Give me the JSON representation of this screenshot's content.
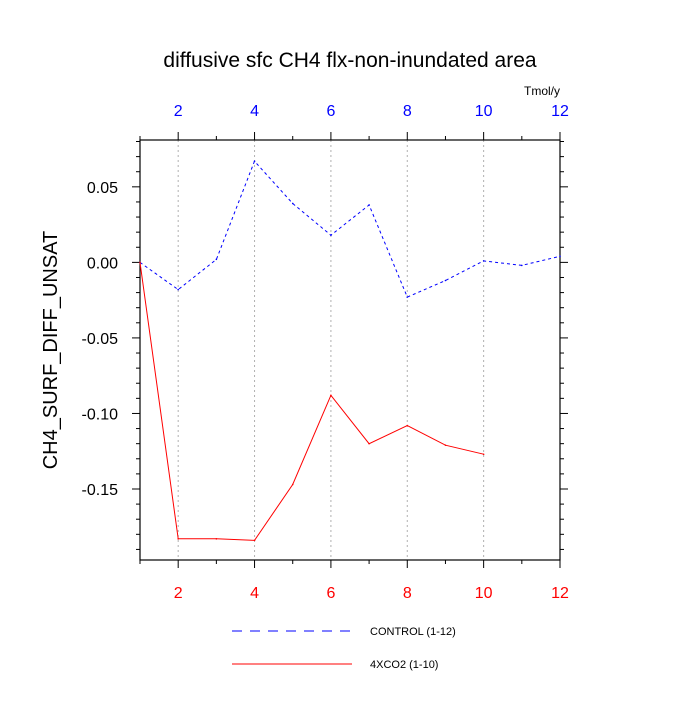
{
  "chart_data": {
    "type": "line",
    "title": "diffusive sfc CH4 flx-non-inundated area",
    "units_label": "Tmol/y",
    "xlabel": "",
    "ylabel": "CH4_SURF_DIFF_UNSAT",
    "xlim": [
      1,
      12
    ],
    "ylim": [
      -0.197,
      0.081
    ],
    "x_ticks": [
      2,
      4,
      6,
      8,
      10,
      12
    ],
    "x_tick_labels": [
      "2",
      "4",
      "6",
      "8",
      "10",
      "12"
    ],
    "y_ticks": [
      0.05,
      0.0,
      -0.05,
      -0.1,
      -0.15
    ],
    "y_tick_labels": [
      "0.05",
      "0.00",
      "-0.05",
      "-0.10",
      "-0.15"
    ],
    "grid": "vertical dotted at major x ticks",
    "top_axis_color": "#0000ff",
    "bottom_axis_color": "#ff0000",
    "series": [
      {
        "name": "CONTROL (1-12)",
        "color": "#0000ff",
        "dash": "dashed",
        "x": [
          1,
          2,
          3,
          4,
          5,
          6,
          7,
          8,
          9,
          10,
          11,
          12
        ],
        "values": [
          0.0,
          -0.018,
          0.002,
          0.067,
          0.039,
          0.018,
          0.038,
          -0.023,
          -0.012,
          0.001,
          -0.002,
          0.004
        ]
      },
      {
        "name": "4XCO2 (1-10)",
        "color": "#ff0000",
        "dash": "solid",
        "x": [
          1,
          2,
          3,
          4,
          5,
          6,
          7,
          8,
          9,
          10
        ],
        "values": [
          0.0,
          -0.183,
          -0.183,
          -0.184,
          -0.147,
          -0.088,
          -0.12,
          -0.108,
          -0.121,
          -0.127
        ]
      }
    ],
    "legend_position": "bottom-center"
  }
}
